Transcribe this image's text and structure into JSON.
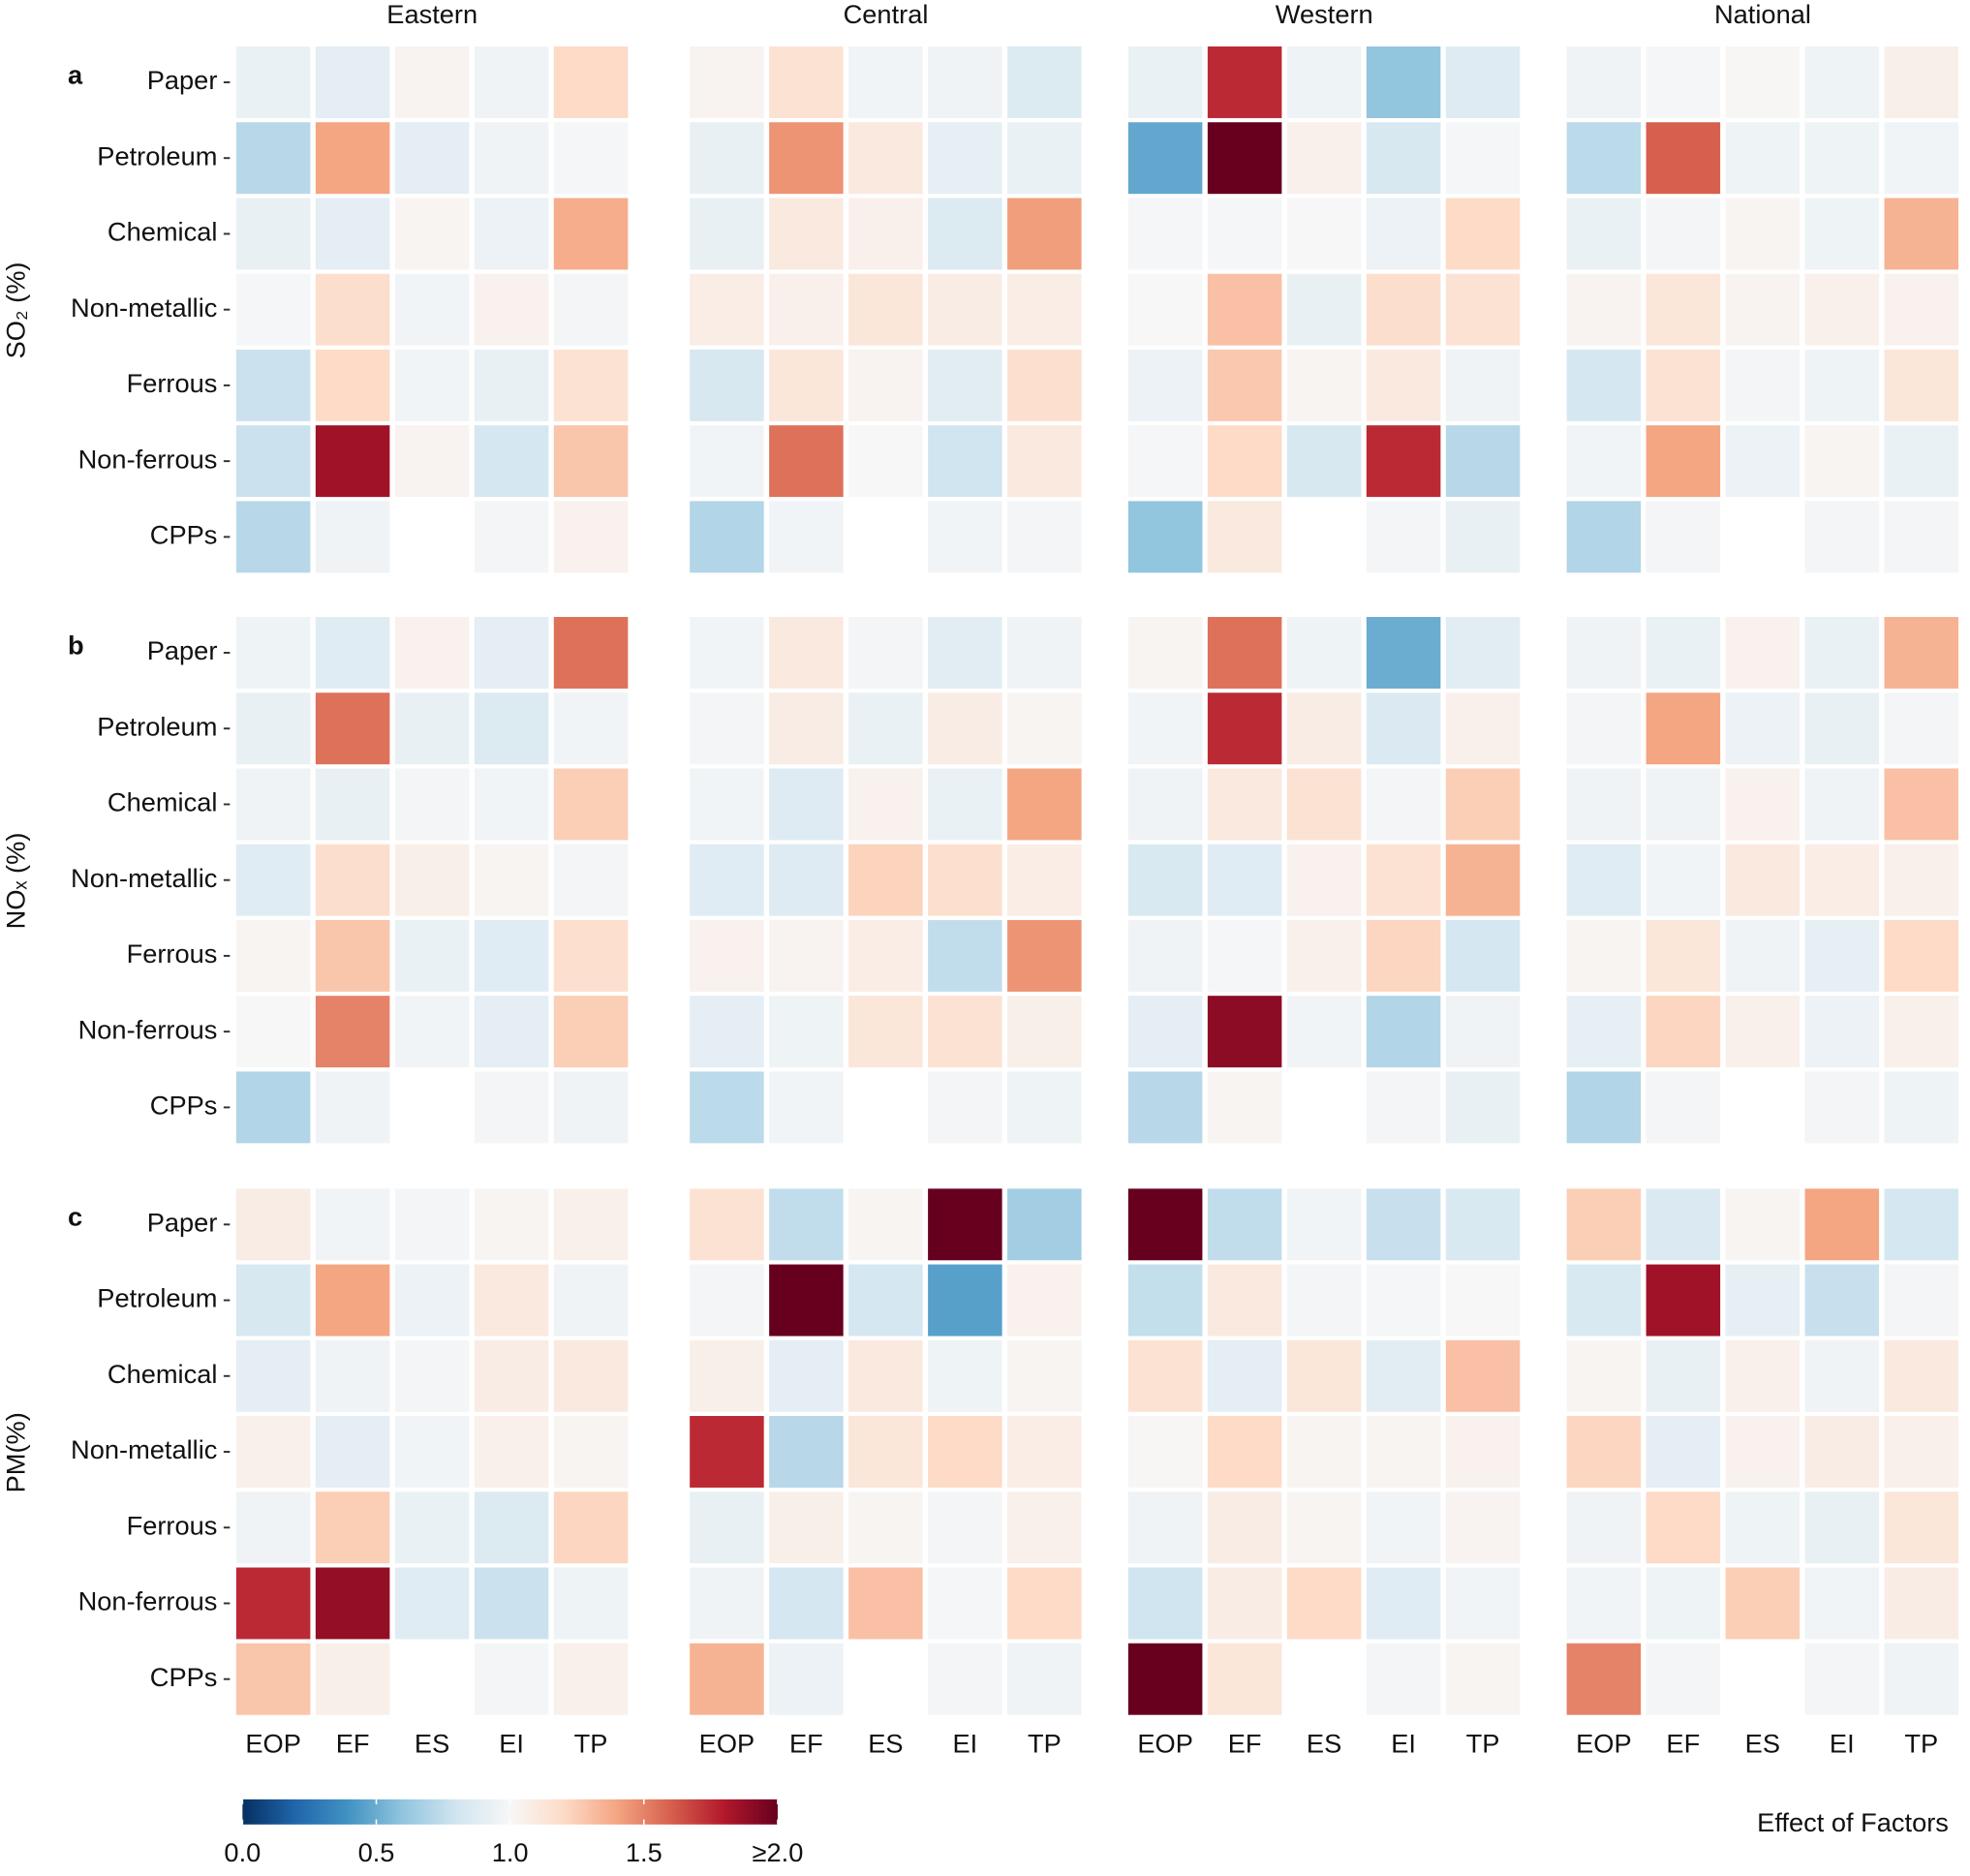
{
  "chart_data": {
    "type": "heatmap",
    "regions": [
      "Eastern",
      "Central",
      "Western",
      "National"
    ],
    "categories": [
      "Paper",
      "Petroleum",
      "Chemical",
      "Non-metallic",
      "Ferrous",
      "Non-ferrous",
      "CPPs"
    ],
    "factors": [
      "EOP",
      "EF",
      "ES",
      "EI",
      "TP"
    ],
    "pollutants": [
      {
        "label": "SO₂ (%)",
        "letter": "a",
        "values": [
          [
            [
              0.93,
              0.9,
              1.03,
              0.96,
              1.2
            ],
            [
              0.72,
              1.4,
              0.9,
              0.96,
              0.99
            ],
            [
              0.92,
              0.9,
              1.02,
              0.94,
              1.37
            ],
            [
              0.99,
              1.18,
              0.97,
              1.04,
              0.98
            ],
            [
              0.78,
              1.2,
              0.97,
              0.92,
              1.15
            ],
            [
              0.78,
              1.85,
              1.03,
              0.82,
              1.28
            ],
            [
              0.72,
              0.96,
              null,
              0.98,
              1.04
            ]
          ],
          [
            [
              1.03,
              1.15,
              0.97,
              0.96,
              0.86
            ],
            [
              0.92,
              1.45,
              1.1,
              0.91,
              0.93
            ],
            [
              0.92,
              1.1,
              1.05,
              0.86,
              1.42
            ],
            [
              1.07,
              1.05,
              1.12,
              1.08,
              1.07
            ],
            [
              0.83,
              1.12,
              1.03,
              0.89,
              1.17
            ],
            [
              0.97,
              1.55,
              1.0,
              0.8,
              1.1
            ],
            [
              0.7,
              0.97,
              null,
              0.97,
              0.98
            ]
          ],
          [
            [
              0.93,
              1.75,
              0.95,
              0.6,
              0.87
            ],
            [
              0.48,
              2.0,
              1.05,
              0.83,
              0.99
            ],
            [
              0.99,
              0.99,
              1.0,
              0.94,
              1.2
            ],
            [
              1.0,
              1.3,
              0.92,
              1.18,
              1.15
            ],
            [
              0.94,
              1.27,
              1.02,
              1.1,
              0.96
            ],
            [
              0.99,
              1.2,
              0.83,
              1.75,
              0.72
            ],
            [
              0.6,
              1.1,
              null,
              0.98,
              0.92
            ]
          ],
          [
            [
              0.96,
              0.99,
              1.01,
              0.95,
              1.06
            ],
            [
              0.73,
              1.6,
              0.95,
              0.95,
              0.97
            ],
            [
              0.93,
              0.98,
              1.02,
              0.95,
              1.35
            ],
            [
              1.03,
              1.12,
              1.03,
              1.05,
              1.04
            ],
            [
              0.82,
              1.15,
              0.98,
              0.95,
              1.12
            ],
            [
              0.97,
              1.4,
              0.94,
              1.02,
              0.93
            ],
            [
              0.7,
              0.98,
              null,
              0.98,
              0.98
            ]
          ]
        ]
      },
      {
        "label": "NOₓ (%)",
        "letter": "b",
        "values": [
          [
            [
              0.95,
              0.88,
              1.04,
              0.9,
              1.55
            ],
            [
              0.92,
              1.55,
              0.92,
              0.86,
              0.97
            ],
            [
              0.96,
              0.92,
              0.98,
              0.97,
              1.25
            ],
            [
              0.88,
              1.18,
              1.06,
              1.02,
              0.98
            ],
            [
              1.02,
              1.28,
              0.93,
              0.88,
              1.17
            ],
            [
              1.0,
              1.5,
              0.97,
              0.9,
              1.25
            ],
            [
              0.7,
              0.96,
              null,
              0.98,
              0.96
            ]
          ],
          [
            [
              0.97,
              1.1,
              0.98,
              0.89,
              0.96
            ],
            [
              0.98,
              1.08,
              0.93,
              1.08,
              1.02
            ],
            [
              0.97,
              0.87,
              1.04,
              0.93,
              1.4
            ],
            [
              0.88,
              0.87,
              1.23,
              1.17,
              1.07
            ],
            [
              1.04,
              1.03,
              1.07,
              0.75,
              1.45
            ],
            [
              0.9,
              0.95,
              1.12,
              1.15,
              1.06
            ],
            [
              0.73,
              0.97,
              null,
              0.98,
              0.95
            ]
          ],
          [
            [
              1.02,
              1.55,
              0.95,
              0.5,
              0.89
            ],
            [
              0.97,
              1.75,
              1.08,
              0.85,
              1.05
            ],
            [
              0.96,
              1.1,
              1.15,
              0.98,
              1.25
            ],
            [
              0.84,
              0.88,
              1.04,
              1.15,
              1.35
            ],
            [
              0.96,
              0.99,
              1.05,
              1.22,
              0.82
            ],
            [
              0.9,
              1.9,
              0.97,
              0.7,
              0.96
            ],
            [
              0.72,
              1.02,
              null,
              0.98,
              0.92
            ]
          ],
          [
            [
              0.96,
              0.93,
              1.04,
              0.93,
              1.35
            ],
            [
              0.98,
              1.4,
              0.94,
              0.92,
              0.98
            ],
            [
              0.96,
              0.96,
              1.04,
              0.96,
              1.3
            ],
            [
              0.88,
              0.97,
              1.1,
              1.07,
              1.05
            ],
            [
              1.02,
              1.12,
              0.96,
              0.91,
              1.2
            ],
            [
              0.91,
              1.22,
              1.05,
              0.94,
              1.05
            ],
            [
              0.7,
              0.98,
              null,
              0.98,
              0.95
            ]
          ]
        ]
      },
      {
        "label": "PM(%)",
        "letter": "c",
        "values": [
          [
            [
              1.08,
              0.97,
              0.98,
              1.02,
              1.05
            ],
            [
              0.83,
              1.4,
              0.94,
              1.1,
              0.96
            ],
            [
              0.9,
              0.96,
              0.98,
              1.08,
              1.1
            ],
            [
              1.05,
              0.9,
              0.97,
              1.05,
              1.02
            ],
            [
              0.96,
              1.25,
              0.93,
              0.86,
              1.22
            ],
            [
              1.75,
              1.88,
              0.88,
              0.78,
              0.95
            ],
            [
              1.28,
              1.06,
              null,
              0.98,
              1.05
            ]
          ],
          [
            [
              1.15,
              0.75,
              1.02,
              2.0,
              0.65
            ],
            [
              0.98,
              2.0,
              0.82,
              0.45,
              1.04
            ],
            [
              1.06,
              0.9,
              1.1,
              0.95,
              1.02
            ],
            [
              1.75,
              0.72,
              1.12,
              1.2,
              1.07
            ],
            [
              0.92,
              1.06,
              1.02,
              0.98,
              1.05
            ],
            [
              0.96,
              0.82,
              1.3,
              0.99,
              1.2
            ],
            [
              1.35,
              0.94,
              null,
              0.98,
              0.96
            ]
          ],
          [
            [
              2.0,
              0.75,
              0.97,
              0.77,
              0.84
            ],
            [
              0.76,
              1.1,
              0.98,
              0.99,
              1.0
            ],
            [
              1.15,
              0.9,
              1.12,
              0.89,
              1.3
            ],
            [
              1.01,
              1.2,
              1.02,
              1.02,
              1.04
            ],
            [
              0.96,
              1.08,
              1.02,
              0.97,
              1.03
            ],
            [
              0.8,
              1.08,
              1.2,
              0.88,
              0.97
            ],
            [
              2.0,
              1.12,
              null,
              0.98,
              1.02
            ]
          ],
          [
            [
              1.25,
              0.85,
              1.02,
              1.4,
              0.82
            ],
            [
              0.84,
              1.85,
              0.91,
              0.77,
              0.98
            ],
            [
              1.02,
              0.92,
              1.05,
              0.96,
              1.1
            ],
            [
              1.22,
              0.9,
              1.04,
              1.08,
              1.05
            ],
            [
              0.96,
              1.2,
              0.95,
              0.92,
              1.12
            ],
            [
              0.97,
              0.95,
              1.25,
              0.97,
              1.08
            ],
            [
              1.5,
              0.98,
              null,
              0.98,
              0.96
            ]
          ]
        ]
      }
    ],
    "colorbar_title": "Effect of Factors",
    "clim": [
      0,
      2
    ],
    "cticks": [
      {
        "value": 0,
        "label": "0.0"
      },
      0.5,
      {
        "value": 1,
        "label": "1.0"
      },
      1.5,
      {
        "value": 2,
        "label": "≥2.0"
      }
    ],
    "colors": [
      "#053061",
      "#2166ac",
      "#4393c3",
      "#92c5de",
      "#d1e5f0",
      "#f7f7f7",
      "#fddbc7",
      "#f4a582",
      "#d6604d",
      "#b2182b",
      "#67001f"
    ]
  }
}
